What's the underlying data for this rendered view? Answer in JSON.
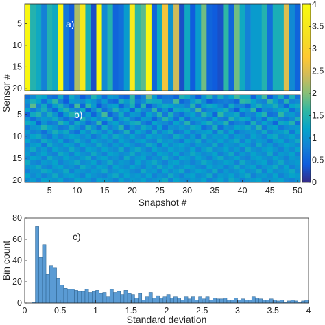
{
  "chart_data": [
    {
      "type": "heatmap",
      "panel_label": "a)",
      "ylabel": "Sensor #",
      "rows": 20,
      "columns": 50,
      "yticks": [
        "5",
        "10",
        "15",
        "20"
      ],
      "column_values": [
        3.9,
        1.5,
        1.3,
        0.8,
        1.5,
        1.3,
        3.9,
        0.7,
        0.4,
        2.2,
        3.5,
        1.4,
        0.3,
        4.0,
        0.9,
        1.5,
        0.5,
        0.6,
        1.1,
        3.6,
        1.6,
        1.8,
        3.9,
        0.5,
        1.3,
        2.7,
        1.0,
        2.4,
        0.3,
        1.3,
        0.4,
        1.1,
        1.9,
        0.5,
        0.4,
        0.3,
        1.6,
        0.5,
        1.9,
        1.3,
        0.8,
        1.1,
        1.1,
        1.5,
        0.6,
        1.4,
        1.4,
        2.5,
        0.9,
        0.5
      ]
    },
    {
      "type": "heatmap",
      "panel_label": "b)",
      "xlabel": "Snapshot #",
      "rows": 20,
      "columns": 50,
      "xticks": [
        "5",
        "10",
        "15",
        "20",
        "25",
        "30",
        "35",
        "40",
        "45",
        "50"
      ],
      "yticks": [
        "5",
        "10",
        "15",
        "20"
      ],
      "note": "per-cell values, rows = sensors 1..20, columns = snapshots 1..50",
      "cells": [
        [
          0.6,
          0.9,
          1.3,
          1.2,
          0.7,
          0.6,
          1.3,
          0.5,
          1.3,
          0.9,
          0.4,
          0.7,
          1.5,
          1.1,
          0.6,
          1.1,
          1.0,
          0.6,
          0.5,
          1.6,
          0.5,
          0.8,
          1.9,
          1.1,
          0.5,
          0.7,
          0.7,
          0.5,
          1.5,
          1.3,
          0.9,
          0.4,
          1.0,
          1.5,
          0.8,
          1.4,
          0.9,
          1.2,
          1.7,
          1.3,
          1.3,
          0.5,
          1.1,
          1.7,
          0.4,
          0.9,
          1.4,
          0.6,
          1.4,
          0.6
        ],
        [
          1.0,
          1.4,
          1.2,
          0.6,
          1.1,
          1.6,
          0.8,
          0.4,
          1.1,
          1.0,
          0.9,
          1.2,
          1.0,
          0.7,
          1.1,
          0.6,
          0.5,
          1.4,
          1.1,
          1.5,
          0.7,
          0.9,
          1.4,
          1.3,
          1.3,
          0.8,
          0.8,
          1.7,
          0.5,
          0.7,
          1.1,
          1.4,
          0.9,
          0.4,
          0.6,
          0.7,
          0.8,
          0.7,
          0.5,
          1.6,
          1.5,
          1.2,
          0.9,
          0.8,
          1.6,
          1.1,
          0.7,
          1.5,
          0.8,
          0.9
        ],
        [
          0.8,
          1.8,
          0.8,
          1.3,
          0.6,
          1.1,
          1.4,
          0.9,
          0.5,
          1.7,
          0.5,
          1.6,
          1.1,
          0.4,
          0.8,
          1.1,
          1.2,
          0.5,
          0.9,
          1.4,
          0.5,
          1.5,
          0.4,
          0.8,
          1.1,
          1.3,
          1.2,
          1.0,
          1.0,
          0.8,
          1.5,
          0.6,
          1.1,
          1.3,
          1.2,
          0.9,
          0.6,
          1.3,
          0.9,
          0.8,
          0.5,
          1.1,
          1.4,
          1.0,
          1.1,
          1.4,
          0.9,
          0.5,
          1.2,
          1.3
        ],
        [
          1.2,
          0.7,
          1.0,
          1.4,
          0.9,
          0.5,
          1.2,
          1.5,
          1.0,
          0.8,
          1.3,
          0.4,
          0.9,
          1.4,
          0.6,
          0.9,
          1.5,
          1.0,
          1.2,
          0.5,
          1.3,
          0.9,
          0.8,
          1.6,
          0.6,
          1.0,
          0.5,
          1.3,
          1.2,
          1.3,
          0.9,
          1.7,
          0.7,
          0.9,
          1.0,
          1.2,
          1.4,
          0.8,
          0.4,
          1.2,
          1.0,
          1.6,
          0.4,
          0.9,
          0.8,
          1.0,
          1.2,
          1.3,
          0.6,
          1.0
        ],
        [
          0.5,
          1.3,
          1.5,
          0.9,
          1.4,
          1.0,
          0.5,
          1.1,
          1.5,
          1.3,
          0.8,
          1.1,
          0.5,
          1.0,
          1.7,
          0.5,
          0.8,
          1.3,
          0.7,
          1.1,
          1.0,
          0.6,
          1.2,
          0.9,
          1.5,
          0.7,
          1.4,
          0.8,
          0.6,
          1.0,
          1.2,
          0.8,
          1.5,
          1.1,
          0.5,
          1.6,
          1.0,
          1.1,
          1.3,
          0.6,
          0.9,
          0.8,
          1.2,
          1.5,
          0.6,
          0.7,
          1.6,
          1.0,
          1.1,
          0.8
        ],
        [
          1.0,
          0.6,
          0.9,
          1.1,
          1.0,
          1.3,
          0.9,
          0.6,
          0.9,
          0.5,
          1.4,
          0.9,
          1.2,
          0.9,
          1.1,
          1.4,
          0.6,
          1.1,
          1.3,
          0.8,
          0.6,
          1.1,
          1.0,
          0.5,
          0.9,
          1.5,
          1.1,
          0.6,
          1.3,
          0.6,
          1.0,
          1.1,
          0.9,
          0.7,
          1.2,
          0.8,
          0.7,
          1.5,
          1.1,
          1.3,
          1.2,
          0.7,
          1.0,
          0.6,
          1.3,
          1.1,
          0.8,
          0.7,
          0.9,
          1.4
        ],
        [
          1.3,
          1.2,
          0.5,
          1.0,
          0.7,
          0.8,
          1.5,
          1.2,
          0.7,
          1.3,
          1.0,
          0.6,
          0.8,
          1.6,
          0.5,
          1.0,
          1.2,
          0.8,
          1.0,
          1.3,
          1.4,
          0.8,
          0.6,
          1.2,
          1.0,
          0.9,
          0.7,
          1.2,
          0.9,
          1.5,
          0.7,
          0.9,
          1.2,
          1.4,
          0.9,
          1.1,
          1.5,
          0.6,
          0.8,
          0.9,
          0.6,
          1.4,
          0.8,
          1.2,
          0.9,
          0.5,
          1.3,
          1.2,
          1.5,
          0.6
        ],
        [
          0.7,
          1.0,
          1.1,
          1.5,
          1.2,
          1.0,
          0.7,
          0.8,
          1.3,
          1.0,
          0.7,
          1.4,
          1.0,
          0.6,
          1.3,
          0.8,
          1.0,
          1.5,
          0.6,
          1.0,
          0.8,
          1.3,
          1.1,
          0.7,
          1.2,
          0.6,
          1.0,
          0.9,
          1.1,
          0.9,
          1.3,
          1.2,
          0.6,
          0.8,
          1.4,
          0.6,
          1.0,
          0.9,
          1.2,
          1.1,
          1.3,
          0.9,
          1.5,
          0.7,
          1.1,
          1.2,
          0.7,
          0.9,
          1.0,
          1.1
        ],
        [
          1.1,
          0.8,
          0.9,
          0.6,
          1.0,
          1.4,
          1.1,
          1.3,
          0.8,
          0.6,
          1.2,
          0.9,
          1.3,
          1.1,
          0.8,
          1.2,
          0.7,
          0.9,
          1.4,
          0.7,
          1.2,
          1.0,
          0.7,
          1.3,
          0.8,
          1.1,
          1.3,
          0.7,
          0.8,
          1.2,
          0.8,
          1.0,
          1.1,
          1.2,
          0.7,
          1.3,
          0.8,
          1.2,
          0.7,
          0.9,
          1.0,
          1.1,
          0.9,
          1.3,
          0.8,
          1.0,
          1.1,
          1.3,
          0.7,
          1.2
        ],
        [
          0.9,
          1.2,
          1.3,
          0.9,
          0.7,
          1.1,
          0.8,
          1.0,
          1.2,
          1.1,
          0.9,
          1.1,
          0.7,
          0.9,
          1.2,
          0.9,
          1.3,
          1.1,
          0.9,
          1.2,
          0.9,
          0.8,
          1.2,
          1.0,
          1.1,
          0.9,
          0.8,
          1.3,
          1.1,
          0.8,
          1.1,
          0.7,
          1.3,
          0.9,
          1.1,
          1.0,
          1.2,
          0.8,
          1.1,
          1.0,
          0.8,
          1.2,
          1.0,
          0.8,
          1.2,
          1.3,
          0.9,
          1.0,
          1.2,
          0.9
        ],
        [
          1.2,
          0.9,
          0.8,
          1.3,
          1.1,
          0.9,
          1.2,
          0.7,
          0.9,
          1.3,
          1.0,
          0.8,
          1.2,
          1.0,
          0.9,
          1.1,
          0.8,
          1.2,
          1.0,
          0.8,
          1.1,
          1.2,
          0.9,
          0.8,
          1.3,
          1.0,
          1.1,
          0.9,
          0.7,
          1.2,
          1.0,
          1.3,
          0.8,
          1.1,
          0.9,
          1.2,
          0.9,
          1.1,
          1.3,
          0.8,
          1.2,
          0.9,
          1.1,
          1.0,
          0.7,
          1.1,
          1.2,
          0.8,
          1.0,
          1.3
        ],
        [
          0.8,
          1.1,
          1.2,
          0.7,
          1.3,
          1.0,
          0.9,
          1.2,
          1.1,
          0.8,
          1.2,
          1.0,
          0.9,
          1.3,
          1.0,
          0.8,
          1.1,
          0.9,
          1.2,
          1.0,
          0.8,
          0.9,
          1.3,
          1.1,
          0.7,
          1.2,
          0.9,
          1.1,
          1.2,
          1.0,
          0.8,
          1.1,
          1.0,
          0.9,
          1.3,
          0.8,
          1.1,
          1.0,
          0.9,
          1.2,
          1.0,
          0.8,
          1.3,
          0.9,
          1.1,
          0.8,
          1.0,
          1.2,
          1.1,
          0.9
        ],
        [
          1.0,
          1.3,
          0.9,
          1.1,
          0.8,
          1.2,
          1.0,
          0.9,
          1.3,
          1.0,
          0.8,
          1.2,
          1.1,
          0.9,
          1.2,
          1.0,
          0.9,
          1.3,
          0.8,
          1.1,
          1.3,
          1.0,
          0.8,
          1.2,
          1.0,
          0.9,
          1.2,
          1.0,
          1.1,
          0.9,
          1.2,
          0.8,
          1.1,
          1.3,
          0.9,
          1.0,
          1.2,
          0.9,
          1.1,
          0.8,
          1.3,
          1.0,
          0.9,
          1.1,
          1.2,
          1.0,
          0.8,
          1.1,
          0.9,
          1.2
        ],
        [
          1.1,
          0.8,
          1.0,
          1.2,
          0.9,
          0.8,
          1.3,
          1.1,
          0.8,
          1.2,
          1.0,
          0.9,
          1.3,
          1.0,
          0.8,
          1.2,
          1.1,
          0.9,
          1.0,
          1.3,
          0.9,
          1.1,
          1.0,
          0.8,
          1.2,
          1.1,
          0.9,
          1.2,
          0.8,
          1.0,
          1.3,
          1.1,
          0.9,
          1.0,
          1.2,
          0.8,
          1.0,
          1.3,
          0.8,
          1.1,
          0.9,
          1.2,
          1.0,
          0.9,
          1.3,
          0.8,
          1.1,
          1.0,
          1.2,
          0.8
        ],
        [
          0.9,
          1.2,
          1.1,
          0.8,
          1.3,
          1.0,
          0.9,
          1.2,
          1.0,
          0.9,
          1.1,
          1.3,
          0.8,
          1.1,
          1.2,
          0.9,
          1.0,
          0.8,
          1.3,
          0.9,
          1.1,
          1.2,
          0.8,
          1.0,
          0.9,
          1.3,
          1.0,
          0.8,
          1.2,
          1.1,
          0.9,
          1.2,
          1.0,
          0.8,
          1.1,
          1.3,
          0.9,
          1.0,
          1.2,
          0.9,
          0.8,
          1.1,
          1.2,
          1.0,
          0.9,
          1.2,
          1.0,
          0.8,
          1.1,
          1.0
        ],
        [
          1.3,
          0.9,
          0.8,
          1.1,
          1.0,
          1.2,
          0.8,
          1.0,
          1.1,
          1.3,
          0.9,
          1.0,
          1.2,
          0.8,
          1.0,
          1.3,
          0.9,
          1.1,
          1.0,
          0.8,
          1.2,
          0.9,
          1.1,
          1.3,
          1.0,
          0.8,
          1.1,
          1.2,
          0.9,
          1.0,
          0.8,
          1.0,
          1.3,
          1.1,
          0.9,
          1.0,
          1.2,
          1.1,
          0.8,
          1.3,
          1.0,
          0.9,
          1.1,
          1.2,
          0.8,
          1.0,
          1.3,
          0.9,
          1.0,
          1.1
        ],
        [
          1.0,
          1.1,
          1.3,
          0.9,
          0.8,
          1.1,
          1.2,
          0.9,
          1.0,
          0.8,
          1.3,
          1.1,
          0.9,
          1.2,
          1.1,
          0.8,
          1.2,
          1.0,
          0.9,
          1.2,
          1.0,
          0.8,
          1.1,
          0.9,
          1.3,
          1.0,
          1.2,
          0.9,
          1.0,
          1.2,
          1.1,
          0.9,
          0.8,
          1.2,
          1.0,
          1.1,
          0.8,
          1.0,
          1.3,
          0.9,
          1.1,
          1.2,
          0.8,
          1.0,
          1.1,
          1.3,
          0.9,
          1.2,
          0.8,
          1.0
        ],
        [
          0.8,
          1.0,
          1.0,
          1.3,
          1.2,
          0.9,
          1.0,
          1.3,
          0.8,
          1.1,
          1.0,
          0.9,
          1.1,
          1.0,
          1.3,
          0.9,
          1.0,
          1.2,
          1.1,
          0.9,
          0.8,
          1.3,
          1.0,
          1.1,
          0.8,
          1.2,
          0.9,
          1.1,
          1.3,
          0.8,
          1.0,
          1.2,
          1.1,
          0.9,
          1.3,
          0.8,
          1.1,
          0.9,
          1.0,
          1.2,
          0.9,
          1.0,
          1.3,
          0.8,
          1.2,
          0.9,
          1.0,
          1.1,
          1.3,
          0.9
        ],
        [
          1.2,
          0.9,
          1.1,
          0.8,
          1.0,
          1.3,
          0.9,
          1.1,
          1.2,
          1.0,
          0.8,
          1.2,
          1.0,
          0.9,
          0.8,
          1.1,
          1.3,
          0.9,
          1.2,
          1.0,
          1.1,
          0.9,
          1.2,
          0.8,
          1.0,
          0.9,
          1.3,
          1.0,
          0.8,
          1.1,
          1.2,
          0.9,
          1.0,
          1.3,
          0.8,
          1.1,
          1.0,
          1.2,
          0.9,
          1.1,
          1.3,
          0.8,
          1.0,
          1.1,
          0.9,
          1.2,
          0.8,
          1.0,
          1.2,
          1.1
        ],
        [
          0.9,
          1.1,
          0.8,
          1.2,
          1.1,
          1.0,
          1.2,
          0.8,
          0.9,
          1.2,
          1.1,
          1.0,
          0.8,
          1.2,
          1.1,
          1.0,
          0.8,
          1.2,
          0.9,
          1.1,
          1.0,
          1.2,
          0.9,
          1.0,
          1.1,
          1.3,
          0.8,
          1.2,
          1.0,
          0.9,
          1.1,
          1.0,
          1.2,
          0.8,
          1.0,
          1.2,
          0.9,
          1.3,
          1.1,
          0.8,
          1.0,
          1.1,
          1.2,
          0.9,
          1.0,
          1.1,
          1.2,
          0.9,
          0.8,
          1.0
        ]
      ]
    },
    {
      "type": "bar",
      "panel_label": "c)",
      "xlabel": "Standard deviation",
      "ylabel": "Bin count",
      "xlim": [
        0,
        4
      ],
      "ylim": [
        0,
        80
      ],
      "xticks": [
        "0",
        "0.5",
        "1",
        "1.5",
        "2",
        "2.5",
        "3",
        "3.5",
        "4"
      ],
      "yticks": [
        "0",
        "20",
        "40",
        "60",
        "80"
      ],
      "bin_width": 0.05,
      "values": [
        0,
        0,
        1,
        72,
        43,
        55,
        27,
        35,
        33,
        23,
        17,
        14,
        13,
        13,
        12,
        11,
        11,
        13,
        10,
        11,
        12,
        9,
        10,
        6,
        13,
        10,
        11,
        8,
        12,
        9,
        8,
        5,
        9,
        3,
        6,
        10,
        5,
        7,
        5,
        6,
        8,
        5,
        6,
        5,
        3,
        6,
        4,
        6,
        3,
        6,
        4,
        6,
        3,
        5,
        4,
        4,
        5,
        3,
        3,
        5,
        3,
        4,
        3,
        3,
        6,
        5,
        4,
        3,
        3,
        4,
        3,
        2,
        3,
        1,
        2,
        3,
        2,
        1,
        2,
        3
      ]
    }
  ],
  "colorbar": {
    "ticks": [
      "0",
      "0.5",
      "1",
      "1.5",
      "2",
      "2.5",
      "3",
      "3.5",
      "4"
    ],
    "range": [
      0,
      4
    ]
  },
  "colors": {
    "bar_fill": "#5a9bd4",
    "bar_stroke": "#2b5f8a",
    "axis": "#262626"
  }
}
